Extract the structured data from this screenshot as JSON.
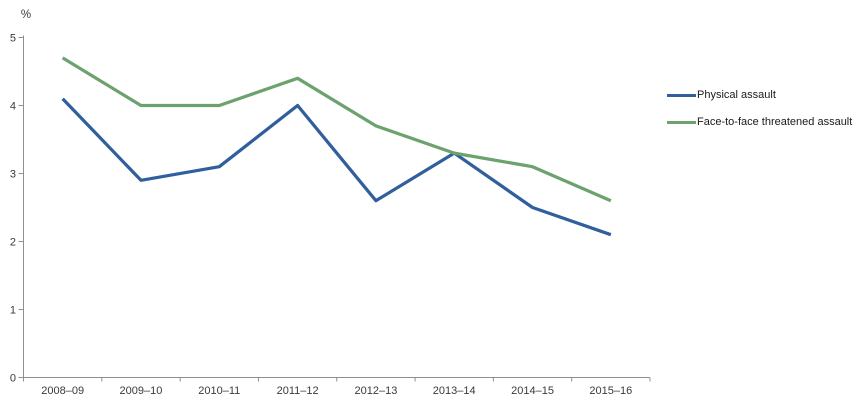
{
  "chart_data": {
    "type": "line",
    "title": "",
    "xlabel": "",
    "ylabel": "%",
    "categories": [
      "2008–09",
      "2009–10",
      "2010–11",
      "2011–12",
      "2012–13",
      "2013–14",
      "2014–15",
      "2015–16"
    ],
    "series": [
      {
        "name": "Physical assault",
        "color": "#305f9c",
        "values": [
          4.1,
          2.9,
          3.1,
          4.0,
          2.6,
          3.3,
          2.5,
          2.1
        ]
      },
      {
        "name": "Face-to-face threatened assault",
        "color": "#6ca26e",
        "values": [
          4.7,
          4.0,
          4.0,
          4.4,
          3.7,
          3.3,
          3.1,
          2.6
        ]
      }
    ],
    "ylim": [
      0,
      5
    ],
    "yticks": [
      0,
      1,
      2,
      3,
      4,
      5
    ],
    "grid": false,
    "legend_position": "right",
    "axis_color": "#8f8f8f",
    "tick_label_color": "#3a3a3a"
  }
}
